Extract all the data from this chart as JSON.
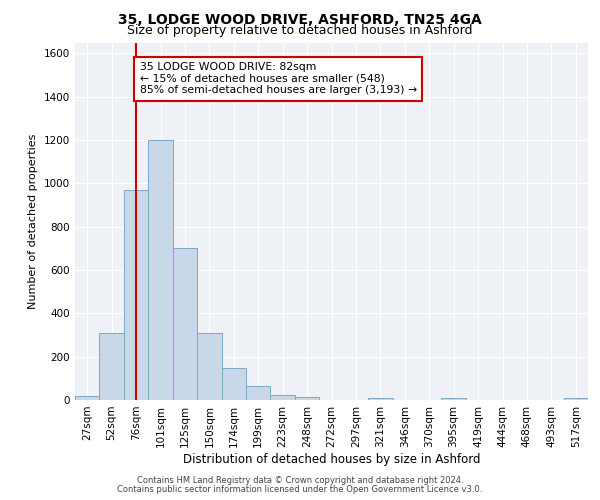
{
  "title1": "35, LODGE WOOD DRIVE, ASHFORD, TN25 4GA",
  "title2": "Size of property relative to detached houses in Ashford",
  "xlabel": "Distribution of detached houses by size in Ashford",
  "ylabel": "Number of detached properties",
  "footer1": "Contains HM Land Registry data © Crown copyright and database right 2024.",
  "footer2": "Contains public sector information licensed under the Open Government Licence v3.0.",
  "annotation_line1": "35 LODGE WOOD DRIVE: 82sqm",
  "annotation_line2": "← 15% of detached houses are smaller (548)",
  "annotation_line3": "85% of semi-detached houses are larger (3,193) →",
  "bar_labels": [
    "27sqm",
    "52sqm",
    "76sqm",
    "101sqm",
    "125sqm",
    "150sqm",
    "174sqm",
    "199sqm",
    "223sqm",
    "248sqm",
    "272sqm",
    "297sqm",
    "321sqm",
    "346sqm",
    "370sqm",
    "395sqm",
    "419sqm",
    "444sqm",
    "468sqm",
    "493sqm",
    "517sqm"
  ],
  "bar_values": [
    20,
    310,
    970,
    1200,
    700,
    310,
    150,
    65,
    25,
    15,
    0,
    0,
    10,
    0,
    0,
    10,
    0,
    0,
    0,
    0,
    10
  ],
  "bar_color": "#c8d8e8",
  "bar_edge_color": "#7aaac8",
  "red_line_x": 2.0,
  "ylim": [
    0,
    1650
  ],
  "yticks": [
    0,
    200,
    400,
    600,
    800,
    1000,
    1200,
    1400,
    1600
  ],
  "background_color": "#eef2f7",
  "annotation_box_color": "#ffffff",
  "annotation_box_edge": "#cc0000",
  "red_line_color": "#cc0000",
  "title1_fontsize": 10,
  "title2_fontsize": 9,
  "ylabel_fontsize": 8,
  "xlabel_fontsize": 8.5,
  "footer_fontsize": 6,
  "tick_fontsize": 7.5
}
